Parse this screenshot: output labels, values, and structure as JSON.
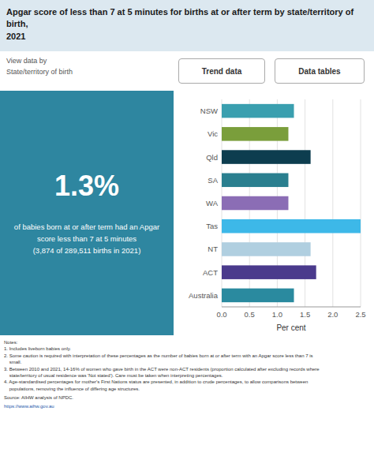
{
  "chart_data": {
    "type": "bar",
    "orientation": "horizontal",
    "title": "Apgar score of less than 7 at 5 minutes for births at or after term by state/territory of birth,\n2021",
    "categories": [
      "NSW",
      "Vic",
      "Qld",
      "SA",
      "WA",
      "Tas",
      "NT",
      "ACT",
      "Australia"
    ],
    "values": [
      1.3,
      1.2,
      1.6,
      1.2,
      1.2,
      2.5,
      1.6,
      1.7,
      1.3
    ],
    "colors": [
      "#3a9faf",
      "#7a9e3b",
      "#0d3d4f",
      "#2a7f8f",
      "#8b6db5",
      "#3db8e8",
      "#b0cfe0",
      "#4a3a8c",
      "#2a8a9f"
    ],
    "xlim": [
      0,
      2.5
    ],
    "xticks": [
      {
        "value": 0,
        "label": "0.0"
      },
      {
        "value": 0.5,
        "label": "0.5"
      },
      {
        "value": 1,
        "label": "1.0"
      },
      {
        "value": 1.5,
        "label": "1.5"
      },
      {
        "value": 2,
        "label": "2.0"
      },
      {
        "value": 2.5,
        "label": "2.5"
      }
    ],
    "xlabel": "Per cent",
    "grid": true,
    "annotations": [
      "View data by\nState/territory of birth",
      "Trend data",
      "Data tables",
      "1.3%",
      "of babies born at or after term had an Apgar\nscore less than 7 at 5 minutes\n(3,874 of 289,511 births in 2021)",
      "Notes:\n1. Includes liveborn babies only.\n2. Some caution is required with interpretation of these percentages as the number of babies born at or after term with an Apgar score less than 7 is\n    small.\n3. Between 2010 and 2021, 14-16% of women who gave birth in the ACT were non-ACT residents (proportion calculated after excluding records where\n    state/territory of usual residence was 'Not stated'). Care must be taken when interpreting percentages.\n4. Age-standardised percentages for mother's First Nations status are presented, in addition to crude percentages, to allow comparisons between\n    populations, removing the influence of differing age structures.",
      "Source:  AIHW analysis of NPDC.",
      "https://www.aihw.gov.au"
    ]
  }
}
